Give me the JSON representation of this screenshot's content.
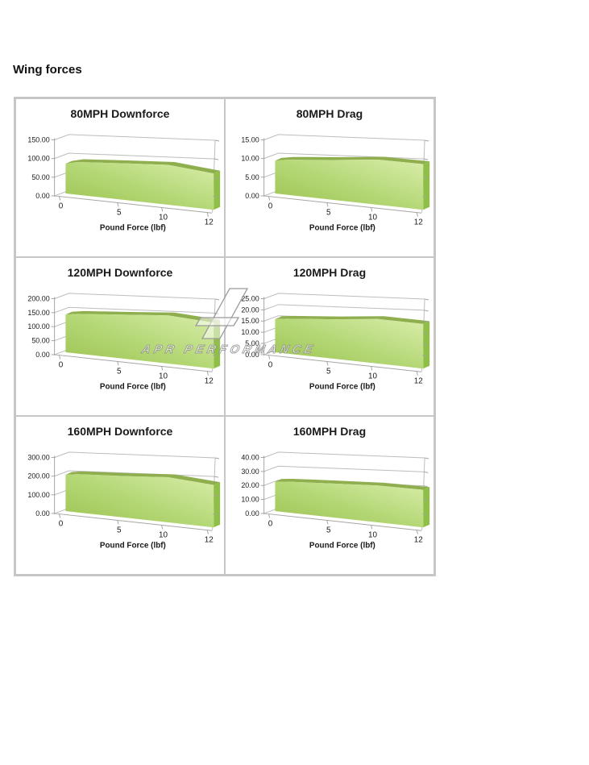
{
  "page": {
    "heading": "Wing forces"
  },
  "watermark": {
    "text": "APR PERFORMANCE"
  },
  "colors": {
    "area_low": "#9cc24f",
    "area_mid": "#b5d877",
    "area_top": "#d9edaa",
    "ridge": "#8fae4e",
    "endcap": "#90bf47",
    "axis": "#a5a5a5",
    "grid": "#bcbcbc",
    "text": "#1a1a1a",
    "panel_border": "#c6c6c6",
    "watermark_stroke": "#949494"
  },
  "chart_data": [
    {
      "type": "area",
      "title": "80MPH Downforce",
      "xlabel": "Pound Force (lbf)",
      "x": [
        0,
        1,
        5,
        10,
        12
      ],
      "values": [
        80,
        88,
        98,
        107,
        97
      ],
      "ylim": [
        0,
        150
      ],
      "ytick_step": 50,
      "xtick_labels": [
        0,
        5,
        10,
        12
      ],
      "grid": true,
      "legend": false
    },
    {
      "type": "area",
      "title": "80MPH Drag",
      "xlabel": "Pound Force (lbf)",
      "x": [
        0,
        1,
        5,
        10,
        12
      ],
      "values": [
        8.8,
        9.4,
        10.7,
        12.1,
        12.2
      ],
      "ylim": [
        0,
        15
      ],
      "ytick_step": 5,
      "xtick_labels": [
        0,
        5,
        10,
        12
      ],
      "grid": true,
      "legend": false
    },
    {
      "type": "area",
      "title": "120MPH Downforce",
      "xlabel": "Pound Force (lbf)",
      "x": [
        0,
        1,
        5,
        10,
        12
      ],
      "values": [
        135,
        142,
        157,
        172,
        164
      ],
      "ylim": [
        0,
        200
      ],
      "ytick_step": 50,
      "xtick_labels": [
        0,
        5,
        10,
        12
      ],
      "grid": true,
      "legend": false
    },
    {
      "type": "area",
      "title": "120MPH Drag",
      "xlabel": "Pound Force (lbf)",
      "x": [
        0,
        1,
        5,
        10,
        12
      ],
      "values": [
        14.8,
        15.6,
        17.6,
        19.9,
        19.9
      ],
      "ylim": [
        0,
        25
      ],
      "ytick_step": 5,
      "xtick_labels": [
        0,
        5,
        10,
        12
      ],
      "grid": true,
      "legend": false
    },
    {
      "type": "area",
      "title": "160MPH Downforce",
      "xlabel": "Pound Force (lbf)",
      "x": [
        0,
        1,
        5,
        10,
        12
      ],
      "values": [
        195,
        205,
        222,
        242,
        227
      ],
      "ylim": [
        0,
        300
      ],
      "ytick_step": 100,
      "xtick_labels": [
        0,
        5,
        10,
        12
      ],
      "grid": true,
      "legend": false
    },
    {
      "type": "area",
      "title": "160MPH Drag",
      "xlabel": "Pound Force (lbf)",
      "x": [
        0,
        1,
        5,
        10,
        12
      ],
      "values": [
        21,
        22,
        24.3,
        26.3,
        26.8
      ],
      "ylim": [
        0,
        40
      ],
      "ytick_step": 10,
      "xtick_labels": [
        0,
        5,
        10,
        12
      ],
      "grid": true,
      "legend": false
    }
  ]
}
